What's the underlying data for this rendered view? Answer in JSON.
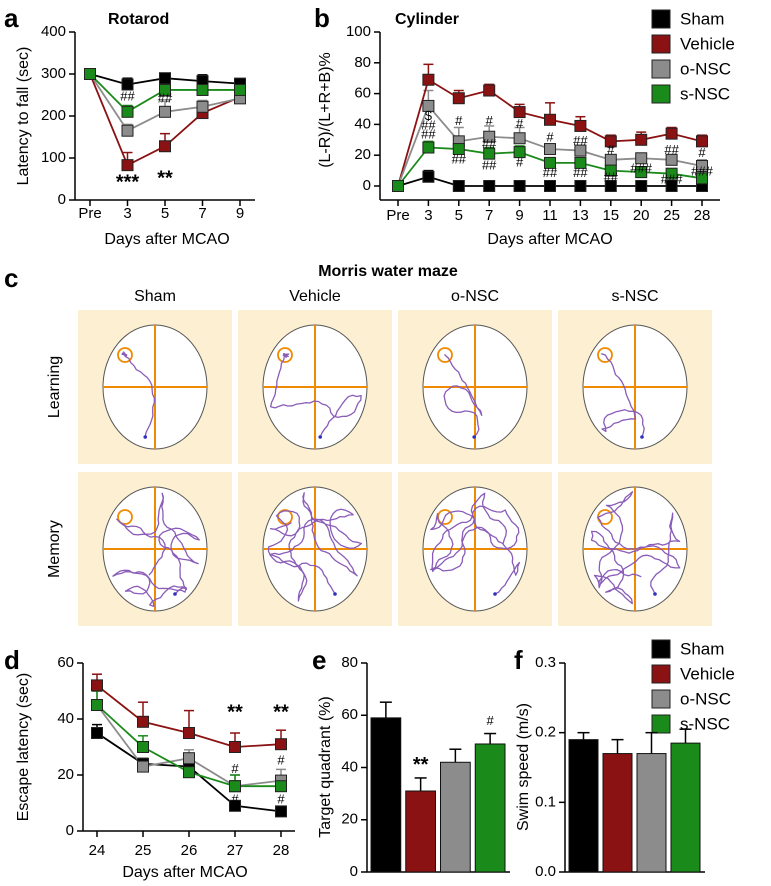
{
  "chart_data": [
    {
      "type": "line",
      "panel": "a",
      "title": "Rotarod",
      "xlabel": "Days after MCAO",
      "ylabel": "Latency to fall (sec)",
      "categories": [
        "Pre",
        "3",
        "5",
        "7",
        "9"
      ],
      "ylim": [
        0,
        400
      ],
      "yticks": [
        0,
        100,
        200,
        300,
        400
      ],
      "series": [
        {
          "color": "#000000",
          "values": [
            300,
            275,
            290,
            283,
            277
          ],
          "errors": [
            0,
            15,
            10,
            15,
            12
          ]
        },
        {
          "color": "#8b1212",
          "values": [
            300,
            83,
            128,
            207,
            245
          ],
          "errors": [
            0,
            30,
            30,
            8,
            10
          ]
        },
        {
          "color": "#8c8c8c",
          "values": [
            300,
            165,
            210,
            222,
            242
          ],
          "errors": [
            0,
            15,
            25,
            15,
            8
          ]
        },
        {
          "color": "#1a8a1a",
          "values": [
            300,
            210,
            262,
            262,
            262
          ],
          "errors": [
            0,
            15,
            12,
            20,
            15
          ]
        }
      ],
      "annotations": [
        {
          "text": "##",
          "x": "3",
          "y": 245
        },
        {
          "text": "##",
          "x": "5",
          "y": 240
        },
        {
          "text": "***",
          "x": "3",
          "y": 40
        },
        {
          "text": "**",
          "x": "5",
          "y": 50
        }
      ]
    },
    {
      "type": "line",
      "panel": "b",
      "title": "Cylinder",
      "xlabel": "Days after MCAO",
      "ylabel": "(L-R)/(L+R+B)%",
      "categories": [
        "Pre",
        "3",
        "5",
        "7",
        "9",
        "11",
        "13",
        "15",
        "20",
        "25",
        "28"
      ],
      "ylim": [
        0,
        100
      ],
      "yticks": [
        0,
        20,
        40,
        60,
        80,
        100
      ],
      "series": [
        {
          "name": "Sham",
          "color": "#000000",
          "values": [
            0,
            6,
            0,
            0,
            0,
            0,
            0,
            0,
            0,
            0,
            0
          ],
          "errors": [
            0,
            4,
            1,
            1,
            1,
            1,
            1,
            1,
            1,
            1,
            1
          ]
        },
        {
          "name": "Vehicle",
          "color": "#8b1212",
          "values": [
            0,
            69,
            57,
            62,
            48,
            43,
            39,
            29,
            30,
            34,
            29
          ],
          "errors": [
            0,
            10,
            5,
            4,
            5,
            11,
            6,
            4,
            5,
            4,
            4
          ]
        },
        {
          "name": "o-NSC",
          "color": "#8c8c8c",
          "values": [
            0,
            52,
            29,
            32,
            31,
            24,
            23,
            17,
            18,
            17,
            13
          ],
          "errors": [
            0,
            10,
            9,
            7,
            7,
            3,
            3,
            3,
            3,
            3,
            4
          ]
        },
        {
          "name": "s-NSC",
          "color": "#1a8a1a",
          "values": [
            0,
            25,
            24,
            21,
            22,
            15,
            15,
            10,
            9,
            8,
            5
          ],
          "errors": [
            0,
            4,
            5,
            4,
            4,
            2,
            2,
            2,
            2,
            2,
            2
          ]
        }
      ],
      "annotations": [
        {
          "text": "$",
          "x": "3",
          "y": 45
        },
        {
          "text": "##",
          "x": "3",
          "y": 39
        },
        {
          "text": "##",
          "x": "3",
          "y": 33
        },
        {
          "text": "#",
          "x": "5",
          "y": 42
        },
        {
          "text": "##",
          "x": "5",
          "y": 17
        },
        {
          "text": "#",
          "x": "7",
          "y": 42
        },
        {
          "text": "##",
          "x": "7",
          "y": 27
        },
        {
          "text": "##",
          "x": "7",
          "y": 13
        },
        {
          "text": "#",
          "x": "9",
          "y": 40
        },
        {
          "text": "#",
          "x": "9",
          "y": 15
        },
        {
          "text": "#",
          "x": "11",
          "y": 31
        },
        {
          "text": "##",
          "x": "11",
          "y": 8
        },
        {
          "text": "##",
          "x": "13",
          "y": 29
        },
        {
          "text": "##",
          "x": "13",
          "y": 8
        },
        {
          "text": "#",
          "x": "15",
          "y": 23
        },
        {
          "text": "##",
          "x": "15",
          "y": 5
        },
        {
          "text": "###",
          "x": "20",
          "y": 11
        },
        {
          "text": "##",
          "x": "25",
          "y": 23
        },
        {
          "text": "###",
          "x": "25",
          "y": 4
        },
        {
          "text": "#",
          "x": "28",
          "y": 21
        },
        {
          "text": "###",
          "x": "28",
          "y": 9
        }
      ]
    },
    {
      "type": "line",
      "panel": "d",
      "xlabel": "Days after MCAO",
      "ylabel": "Escape latency (sec)",
      "categories": [
        "24",
        "25",
        "26",
        "27",
        "28"
      ],
      "ylim": [
        0,
        60
      ],
      "yticks": [
        0,
        20,
        40,
        60
      ],
      "series": [
        {
          "color": "#000000",
          "values": [
            35,
            24,
            23,
            9,
            7
          ],
          "errors": [
            3,
            2,
            3,
            1,
            1
          ]
        },
        {
          "color": "#8b1212",
          "values": [
            52,
            39,
            35,
            30,
            31
          ],
          "errors": [
            4,
            7,
            8,
            5,
            5
          ]
        },
        {
          "color": "#8c8c8c",
          "values": [
            45,
            23,
            26,
            16,
            18
          ],
          "errors": [
            5,
            3,
            3,
            4,
            4
          ]
        },
        {
          "color": "#1a8a1a",
          "values": [
            45,
            30,
            21,
            16,
            16
          ],
          "errors": [
            5,
            4,
            2,
            4,
            3
          ]
        }
      ],
      "annotations": [
        {
          "text": "**",
          "x": "27",
          "y": 42
        },
        {
          "text": "**",
          "x": "28",
          "y": 42
        },
        {
          "text": "#",
          "x": "27",
          "y": 22
        },
        {
          "text": "#",
          "x": "27",
          "y": 11
        },
        {
          "text": "#",
          "x": "28",
          "y": 25
        },
        {
          "text": "#",
          "x": "28",
          "y": 11
        }
      ]
    },
    {
      "type": "bar",
      "panel": "e",
      "ylabel": "Target quadrant (%)",
      "ylim": [
        0,
        80
      ],
      "yticks": [
        0,
        20,
        40,
        60,
        80
      ],
      "values": [
        59,
        31,
        42,
        49
      ],
      "errors": [
        6,
        5,
        5,
        4
      ],
      "colors": [
        "#000000",
        "#8b1212",
        "#8c8c8c",
        "#1a8a1a"
      ],
      "annotations": [
        null,
        "**",
        null,
        "#"
      ]
    },
    {
      "type": "bar",
      "panel": "f",
      "ylabel": "Swim speed (m/s)",
      "ylim": [
        0,
        0.3
      ],
      "yticks": [
        {
          "value": 0,
          "label": "0.0"
        },
        0.1,
        0.2,
        0.3
      ],
      "series": [
        {
          "name": "Sham",
          "color": "#000000",
          "values": [
            0.19
          ],
          "errors": [
            0.01
          ]
        },
        {
          "name": "Vehicle",
          "color": "#8b1212",
          "values": [
            0.17
          ],
          "errors": [
            0.02
          ]
        },
        {
          "name": "o-NSC",
          "color": "#8c8c8c",
          "values": [
            0.17
          ],
          "errors": [
            0.03
          ]
        },
        {
          "name": "s-NSC",
          "color": "#1a8a1a",
          "values": [
            0.185
          ],
          "errors": [
            0.02
          ]
        }
      ]
    }
  ],
  "maze": {
    "panel": "c",
    "title": "Morris water maze",
    "columns": [
      "Sham",
      "Vehicle",
      "o-NSC",
      "s-NSC"
    ],
    "rows": [
      "Learning",
      "Memory"
    ]
  }
}
